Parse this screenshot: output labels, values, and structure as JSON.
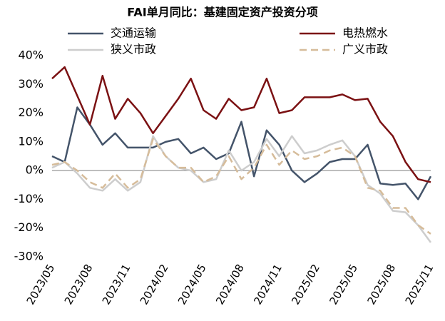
{
  "chart_data": {
    "type": "line",
    "title": "FAI单月同比：基建固定资产投资分项",
    "categories": [
      "2023/05",
      null,
      null,
      "2023/08",
      null,
      null,
      "2023/11",
      null,
      null,
      "2024/02",
      null,
      null,
      "2024/05",
      null,
      null,
      "2024/08",
      null,
      null,
      "2024/11",
      null,
      null,
      "2025/02",
      null,
      null,
      "2025/05",
      null,
      null,
      "2025/08",
      null,
      null,
      "2025/11"
    ],
    "series": [
      {
        "name": "交通运输",
        "color": "#44546a",
        "line_style": "solid",
        "values": [
          5,
          3,
          22,
          16,
          9,
          13,
          8,
          8,
          8,
          10,
          11,
          6,
          8,
          4,
          6,
          17,
          -2,
          14,
          9,
          0,
          -4,
          -1,
          3,
          4,
          4,
          9,
          -4.5,
          -5,
          -4.5,
          -10,
          -2
        ]
      },
      {
        "name": "电热燃水",
        "color": "#7b1113",
        "line_style": "solid",
        "values": [
          32,
          36,
          26,
          16,
          33,
          18,
          25,
          20,
          13,
          19,
          25,
          32,
          21,
          18,
          25,
          21,
          22,
          32,
          20,
          21,
          25.5,
          25.5,
          25.5,
          26.5,
          24.5,
          25,
          17,
          12,
          3,
          -3,
          -4
        ]
      },
      {
        "name": "狭义市政",
        "color": "#cdcdcd",
        "line_style": "solid",
        "values": [
          1,
          3,
          -1,
          -6,
          -7,
          -3,
          -7,
          -4,
          12,
          5,
          1,
          0,
          -4,
          -3,
          7,
          0,
          3,
          11,
          5,
          12,
          6,
          7,
          9,
          10.5,
          5,
          -5,
          -8,
          -14,
          -14.5,
          -19,
          -25
        ]
      },
      {
        "name": "广义市政",
        "color": "#d6bc9a",
        "line_style": "dashed",
        "values": [
          2,
          3,
          0,
          -4,
          -6,
          -1,
          -6,
          -3,
          11,
          5,
          1,
          1,
          -4,
          -2,
          5,
          -3,
          1,
          9,
          2,
          7,
          4,
          5,
          7,
          8,
          5,
          -6,
          -7,
          -13,
          -13,
          -19,
          -22
        ]
      }
    ],
    "ylim": [
      -30,
      40
    ],
    "yticks": [
      {
        "value": -30,
        "label": "-30%"
      },
      {
        "value": -20,
        "label": "-20%"
      },
      {
        "value": -10,
        "label": "-10%"
      },
      {
        "value": 0,
        "label": "0%"
      },
      {
        "value": 10,
        "label": "10%"
      },
      {
        "value": 20,
        "label": "20%"
      },
      {
        "value": 30,
        "label": "30%"
      },
      {
        "value": 40,
        "label": "40%"
      }
    ],
    "grid": false,
    "legend": "top"
  }
}
